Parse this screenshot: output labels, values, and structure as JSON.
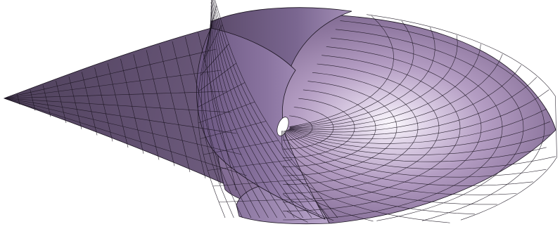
{
  "figure": {
    "kind": "3d-parametric-surface",
    "description_visible": "",
    "style": {
      "surface_color": "#9a82a8",
      "surface_dark": "#4f4159",
      "surface_mid": "#7d6890",
      "surface_light": "#cdbfd8",
      "highlight": "#f6f1fa",
      "mesh_line_color": "#1b1420",
      "background": "#ffffff"
    }
  }
}
